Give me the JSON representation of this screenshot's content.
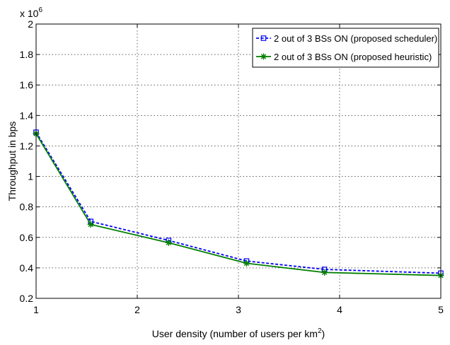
{
  "chart_data": {
    "type": "line",
    "xlabel_main": "User density (number of users per km",
    "xlabel_sup": "2",
    "xlabel_end": ")",
    "ylabel": "Throughput in bps",
    "y_multiplier_base": "x 10",
    "y_multiplier_exp": "6",
    "xlim": [
      1,
      5
    ],
    "ylim": [
      0.2,
      2
    ],
    "xticks": [
      1,
      2,
      3,
      4,
      5
    ],
    "xtick_labels": [
      "1",
      "2",
      "3",
      "4",
      "5"
    ],
    "yticks": [
      0.2,
      0.4,
      0.6,
      0.8,
      1,
      1.2,
      1.4,
      1.6,
      1.8,
      2
    ],
    "ytick_labels": [
      "0.2",
      "0.4",
      "0.6",
      "0.8",
      "1",
      "1.2",
      "1.4",
      "1.6",
      "1.8",
      "2"
    ],
    "grid": true,
    "legend_position": "top-right",
    "series": [
      {
        "name": "2 out of 3 BSs ON (proposed scheduler)",
        "color": "#0000ff",
        "line_style": "dashed",
        "marker": "square",
        "x": [
          1,
          1.54,
          2.31,
          3.08,
          3.85,
          5
        ],
        "y": [
          1.29,
          0.705,
          0.58,
          0.445,
          0.39,
          0.365
        ]
      },
      {
        "name": "2 out of 3 BSs ON (proposed heuristic)",
        "color": "#007f00",
        "line_style": "solid",
        "marker": "star",
        "x": [
          1,
          1.54,
          2.31,
          3.08,
          3.85,
          5
        ],
        "y": [
          1.28,
          0.685,
          0.565,
          0.43,
          0.37,
          0.35
        ]
      }
    ]
  }
}
